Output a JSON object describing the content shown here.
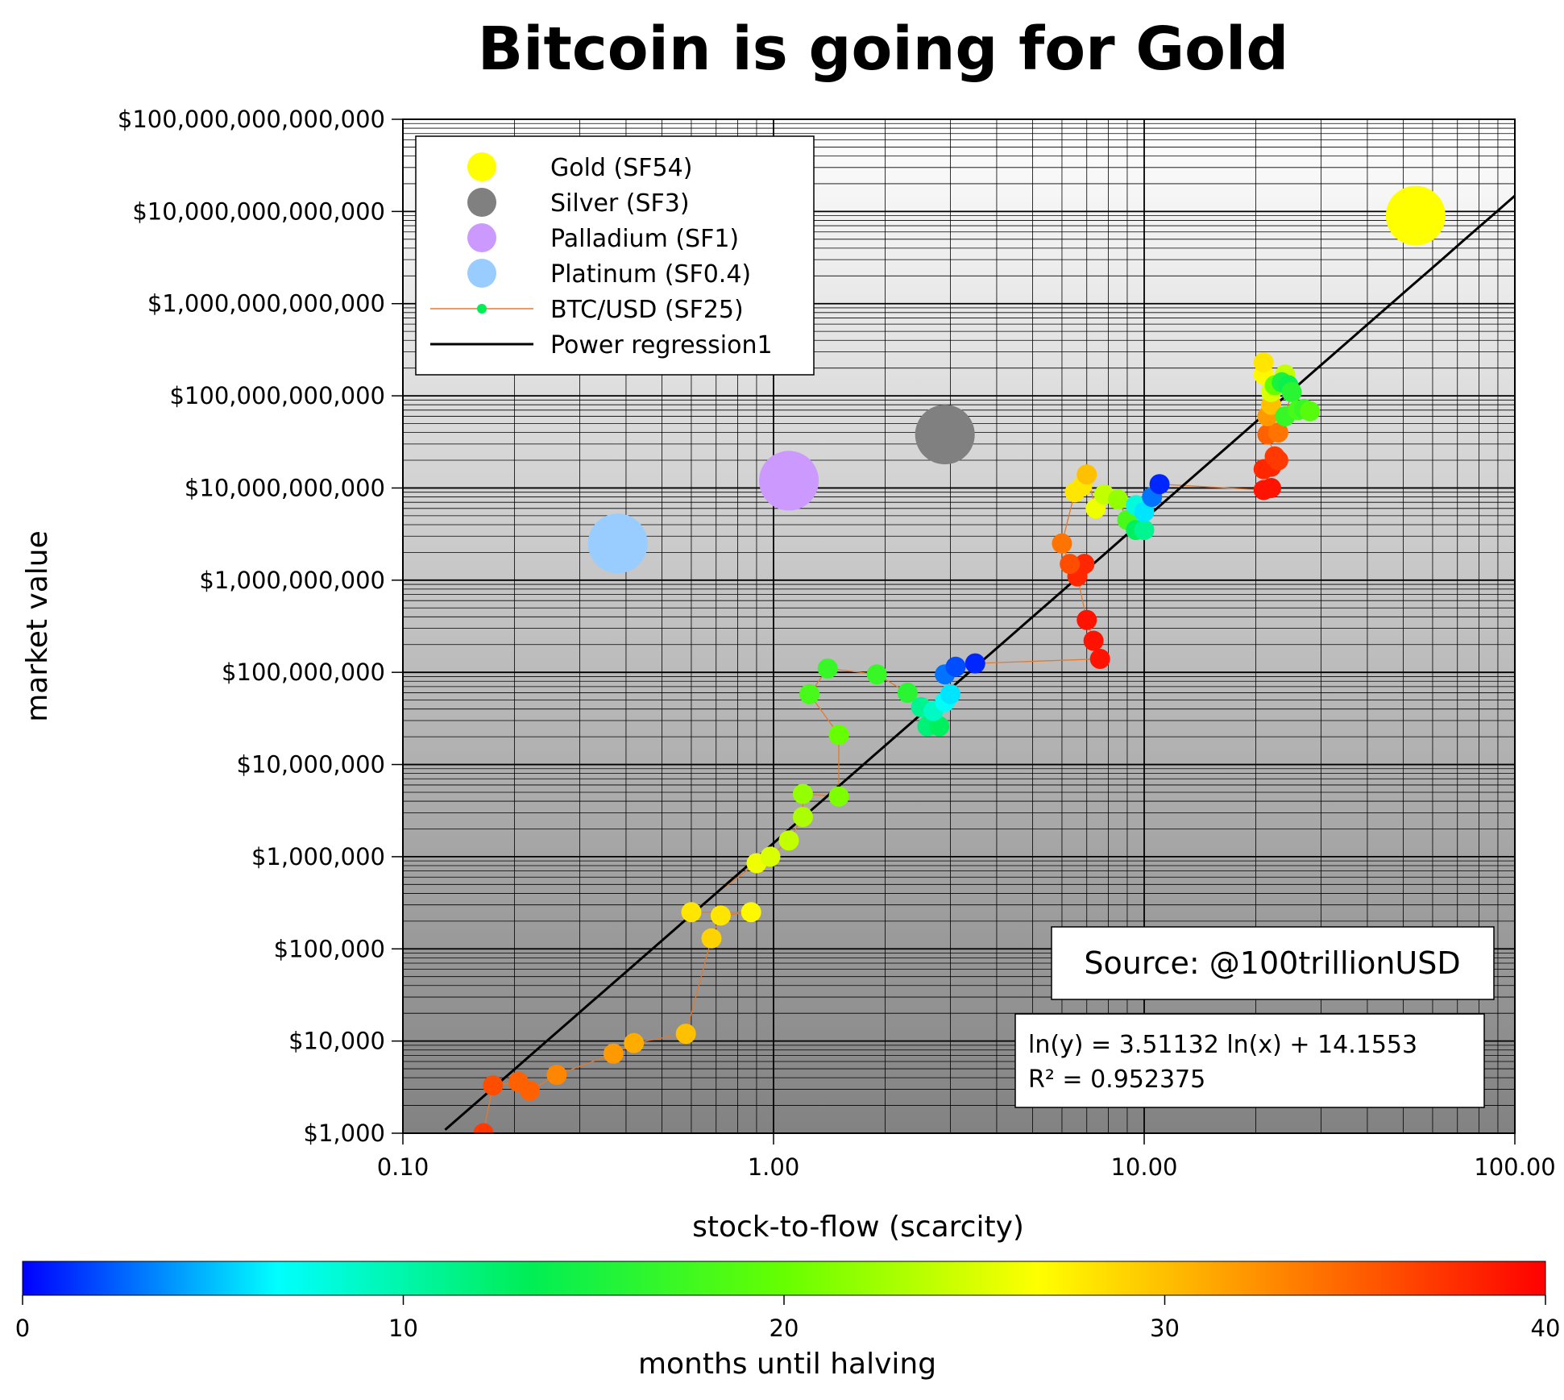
{
  "chart_data": {
    "type": "scatter",
    "title": "Bitcoin is going for Gold",
    "xlabel": "stock-to-flow (scarcity)",
    "ylabel": "market value",
    "x_scale": "log",
    "y_scale": "log",
    "xlim": [
      0.1,
      100
    ],
    "ylim": [
      1000,
      100000000000000
    ],
    "grid": true,
    "x_tick_labels": [
      "0.10",
      "1.00",
      "10.00",
      "100.00"
    ],
    "y_tick_labels": [
      "$1,000",
      "$10,000",
      "$100,000",
      "$1,000,000",
      "$10,000,000",
      "$100,000,000",
      "$1,000,000,000",
      "$10,000,000,000",
      "$100,000,000,000",
      "$1,000,000,000,000",
      "$10,000,000,000,000",
      "$100,000,000,000,000"
    ],
    "legend_position": "top-left",
    "legend": [
      {
        "label": "Gold (SF54)",
        "color": "#ffff00",
        "marker": "circle"
      },
      {
        "label": "Silver (SF3)",
        "color": "#808080",
        "marker": "circle"
      },
      {
        "label": "Palladium (SF1)",
        "color": "#cc99ff",
        "marker": "circle"
      },
      {
        "label": "Platinum (SF0.4)",
        "color": "#99ccff",
        "marker": "circle"
      },
      {
        "label": "BTC/USD (SF25)",
        "color": "#00ee55",
        "line_color": "#e07a30",
        "marker": "line-dot"
      },
      {
        "label": "Power regression1",
        "color": "#000000",
        "marker": "line"
      }
    ],
    "commodities": [
      {
        "name": "Gold",
        "sf": 54,
        "value": 9000000000000,
        "color": "#ffff00"
      },
      {
        "name": "Silver",
        "sf": 2.9,
        "value": 38000000000,
        "color": "#808080"
      },
      {
        "name": "Palladium",
        "sf": 1.1,
        "value": 12000000000,
        "color": "#cc99ff"
      },
      {
        "name": "Platinum",
        "sf": 0.38,
        "value": 2500000000,
        "color": "#99ccff"
      }
    ],
    "btc_series": [
      {
        "sf": 0.165,
        "value": 1000,
        "months": 37
      },
      {
        "sf": 0.175,
        "value": 3300,
        "months": 36
      },
      {
        "sf": 0.205,
        "value": 3600,
        "months": 35
      },
      {
        "sf": 0.22,
        "value": 2900,
        "months": 35
      },
      {
        "sf": 0.26,
        "value": 4300,
        "months": 33
      },
      {
        "sf": 0.37,
        "value": 7300,
        "months": 32
      },
      {
        "sf": 0.42,
        "value": 9500,
        "months": 31
      },
      {
        "sf": 0.58,
        "value": 12000,
        "months": 30
      },
      {
        "sf": 0.68,
        "value": 130000,
        "months": 29
      },
      {
        "sf": 0.72,
        "value": 230000,
        "months": 28
      },
      {
        "sf": 0.87,
        "value": 250000,
        "months": 27
      },
      {
        "sf": 0.6,
        "value": 250000,
        "months": 28
      },
      {
        "sf": 0.9,
        "value": 850000,
        "months": 26
      },
      {
        "sf": 0.98,
        "value": 1000000,
        "months": 25
      },
      {
        "sf": 1.1,
        "value": 1500000,
        "months": 24
      },
      {
        "sf": 1.2,
        "value": 2700000,
        "months": 23
      },
      {
        "sf": 1.2,
        "value": 4800000,
        "months": 22
      },
      {
        "sf": 1.5,
        "value": 4500000,
        "months": 21
      },
      {
        "sf": 1.5,
        "value": 21000000,
        "months": 20
      },
      {
        "sf": 1.25,
        "value": 58000000,
        "months": 18
      },
      {
        "sf": 1.4,
        "value": 110000000,
        "months": 17
      },
      {
        "sf": 1.9,
        "value": 95000000,
        "months": 17
      },
      {
        "sf": 2.3,
        "value": 60000000,
        "months": 16
      },
      {
        "sf": 2.5,
        "value": 42000000,
        "months": 11
      },
      {
        "sf": 2.6,
        "value": 26000000,
        "months": 12
      },
      {
        "sf": 2.8,
        "value": 26000000,
        "months": 13
      },
      {
        "sf": 2.7,
        "value": 38000000,
        "months": 9
      },
      {
        "sf": 2.9,
        "value": 48000000,
        "months": 7
      },
      {
        "sf": 3.0,
        "value": 58000000,
        "months": 6
      },
      {
        "sf": 2.9,
        "value": 95000000,
        "months": 3
      },
      {
        "sf": 3.1,
        "value": 115000000,
        "months": 2
      },
      {
        "sf": 3.5,
        "value": 125000000,
        "months": 1
      },
      {
        "sf": 7.6,
        "value": 140000000,
        "months": 39
      },
      {
        "sf": 7.3,
        "value": 220000000,
        "months": 39
      },
      {
        "sf": 7.0,
        "value": 370000000,
        "months": 39
      },
      {
        "sf": 6.6,
        "value": 1100000000,
        "months": 38
      },
      {
        "sf": 6.9,
        "value": 1500000000,
        "months": 38
      },
      {
        "sf": 6.3,
        "value": 1500000000,
        "months": 36
      },
      {
        "sf": 6.0,
        "value": 2500000000,
        "months": 34
      },
      {
        "sf": 6.5,
        "value": 9000000000,
        "months": 28
      },
      {
        "sf": 6.8,
        "value": 10500000000,
        "months": 28
      },
      {
        "sf": 7.0,
        "value": 14000000000,
        "months": 30
      },
      {
        "sf": 7.4,
        "value": 6000000000,
        "months": 26
      },
      {
        "sf": 7.8,
        "value": 8500000000,
        "months": 24
      },
      {
        "sf": 8.5,
        "value": 7500000000,
        "months": 22
      },
      {
        "sf": 9.0,
        "value": 4500000000,
        "months": 18
      },
      {
        "sf": 9.5,
        "value": 3500000000,
        "months": 13
      },
      {
        "sf": 10.0,
        "value": 3500000000,
        "months": 11
      },
      {
        "sf": 9.5,
        "value": 6500000000,
        "months": 8
      },
      {
        "sf": 10.0,
        "value": 5500000000,
        "months": 6
      },
      {
        "sf": 10.5,
        "value": 8000000000,
        "months": 3
      },
      {
        "sf": 11.0,
        "value": 11000000000,
        "months": 1
      },
      {
        "sf": 21.0,
        "value": 9500000000,
        "months": 39
      },
      {
        "sf": 22.0,
        "value": 10000000000,
        "months": 39
      },
      {
        "sf": 21.0,
        "value": 16000000000,
        "months": 38
      },
      {
        "sf": 22.0,
        "value": 17000000000,
        "months": 38
      },
      {
        "sf": 23.0,
        "value": 20000000000,
        "months": 37
      },
      {
        "sf": 22.5,
        "value": 22000000000,
        "months": 37
      },
      {
        "sf": 21.5,
        "value": 38000000000,
        "months": 35
      },
      {
        "sf": 23.0,
        "value": 40000000000,
        "months": 34
      },
      {
        "sf": 21.5,
        "value": 60000000000,
        "months": 32
      },
      {
        "sf": 22.0,
        "value": 80000000000,
        "months": 30
      },
      {
        "sf": 21.0,
        "value": 170000000000,
        "months": 27
      },
      {
        "sf": 21.0,
        "value": 230000000000,
        "months": 28
      },
      {
        "sf": 22.0,
        "value": 110000000000,
        "months": 25
      },
      {
        "sf": 24.0,
        "value": 170000000000,
        "months": 24
      },
      {
        "sf": 22.5,
        "value": 130000000000,
        "months": 20
      },
      {
        "sf": 23.5,
        "value": 140000000000,
        "months": 15
      },
      {
        "sf": 24.5,
        "value": 130000000000,
        "months": 14
      },
      {
        "sf": 25.0,
        "value": 110000000000,
        "months": 16
      },
      {
        "sf": 24.0,
        "value": 60000000000,
        "months": 17
      },
      {
        "sf": 26.0,
        "value": 70000000000,
        "months": 18
      },
      {
        "sf": 27.0,
        "value": 72000000000,
        "months": 17
      },
      {
        "sf": 28.0,
        "value": 68000000000,
        "months": 19
      }
    ],
    "regression": {
      "name": "Power regression1",
      "equation": "ln(y) = 3.51132 ln(x) + 14.1553",
      "r2": "R² = 0.952375",
      "slope": 3.51132,
      "intercept": 14.1553,
      "x_range": [
        0.13,
        100
      ]
    },
    "colorbar": {
      "label": "months until halving",
      "ticks": [
        "0",
        "10",
        "20",
        "30",
        "40"
      ],
      "range": [
        0,
        40
      ]
    }
  },
  "source_text": "Source: @100trillionUSD"
}
